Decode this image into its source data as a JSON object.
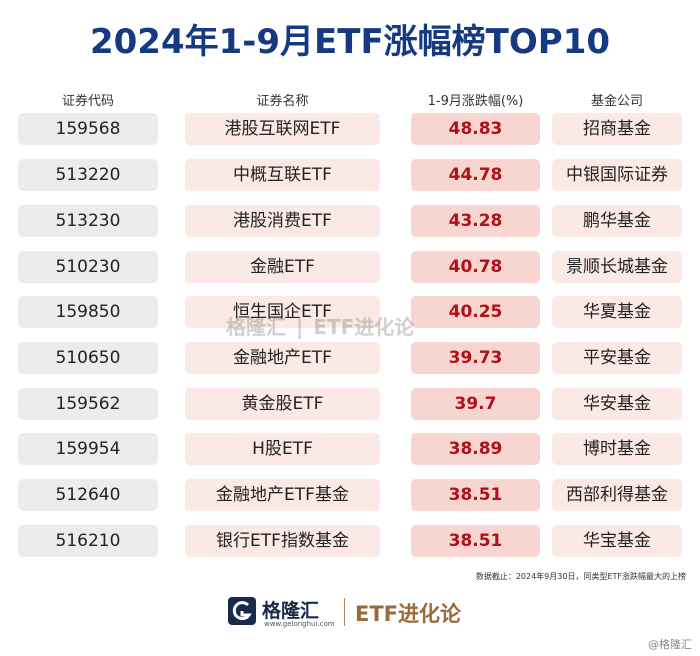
{
  "title": "2024年1-9月ETF涨幅榜TOP10",
  "headers": {
    "code": "证券代码",
    "name": "证券名称",
    "pct": "1-9月涨跌幅(%)",
    "company": "基金公司"
  },
  "rows": [
    {
      "code": "159568",
      "name": "港股互联网ETF",
      "pct": "48.83",
      "company": "招商基金"
    },
    {
      "code": "513220",
      "name": "中概互联ETF",
      "pct": "44.78",
      "company": "中银国际证券"
    },
    {
      "code": "513230",
      "name": "港股消费ETF",
      "pct": "43.28",
      "company": "鹏华基金"
    },
    {
      "code": "510230",
      "name": "金融ETF",
      "pct": "40.78",
      "company": "景顺长城基金"
    },
    {
      "code": "159850",
      "name": "恒生国企ETF",
      "pct": "40.25",
      "company": "华夏基金"
    },
    {
      "code": "510650",
      "name": "金融地产ETF",
      "pct": "39.73",
      "company": "平安基金"
    },
    {
      "code": "159562",
      "name": "黄金股ETF",
      "pct": "39.7",
      "company": "华安基金"
    },
    {
      "code": "159954",
      "name": "H股ETF",
      "pct": "38.89",
      "company": "博时基金"
    },
    {
      "code": "512640",
      "name": "金融地产ETF基金",
      "pct": "38.51",
      "company": "西部利得基金"
    },
    {
      "code": "516210",
      "name": "银行ETF指数基金",
      "pct": "38.51",
      "company": "华宝基金"
    }
  ],
  "note": "数据截止：2024年9月30日，同类型ETF涨跌幅最大的上榜",
  "watermark": {
    "logo": "格隆汇",
    "brand": "ETF进化论"
  },
  "footer": {
    "logo_text": "格隆汇",
    "logo_url": "www.gelonghui.com",
    "brand": "ETF进化论"
  },
  "corner_mark": "@格隆汇",
  "colors": {
    "title": "#163a82",
    "pct_text": "#b30f16",
    "brand": "#9b6a3c"
  }
}
